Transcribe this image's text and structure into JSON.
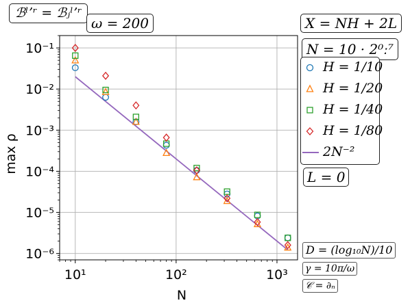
{
  "annotations": {
    "top_left": "ℬˡʼʳ = ℬⱼˡʼʳ",
    "omega": "ω = 200",
    "x_formula": "X = NH + 2L",
    "n_formula": "N = 10 · 2⁰ː⁷",
    "l_value": "L = 0",
    "d_formula": "D = (log₁₀N)/10",
    "gamma_formula": "γ = 10π/ω",
    "c_formula": "𝒞 = ∂ₙ"
  },
  "chart_data": {
    "type": "scatter",
    "xlabel": "N",
    "ylabel": "max ρ",
    "xscale": "log",
    "yscale": "log",
    "xlim": [
      7,
      1600
    ],
    "ylim": [
      7e-07,
      0.2
    ],
    "grid": true,
    "legend_placement": "right, outside plot",
    "x_ticks": [
      {
        "value": 10,
        "label": "10¹"
      },
      {
        "value": 100,
        "label": "10²"
      },
      {
        "value": 1000,
        "label": "10³"
      }
    ],
    "y_ticks": [
      {
        "value": 0.1,
        "label": "10⁻¹"
      },
      {
        "value": 0.01,
        "label": "10⁻²"
      },
      {
        "value": 0.001,
        "label": "10⁻³"
      },
      {
        "value": 0.0001,
        "label": "10⁻⁴"
      },
      {
        "value": 1e-05,
        "label": "10⁻⁵"
      },
      {
        "value": 1e-06,
        "label": "10⁻⁶"
      }
    ],
    "x": [
      10,
      20,
      40,
      80,
      160,
      320,
      640,
      1280
    ],
    "series": [
      {
        "name": "H = 1/10",
        "marker": "circle",
        "color": "#1f77b4",
        "values": [
          0.033,
          0.0063,
          0.0016,
          0.00043,
          0.000105,
          2.8e-05,
          8.2e-06,
          2.4e-06
        ]
      },
      {
        "name": "H = 1/20",
        "marker": "triangle",
        "color": "#ff7f0e",
        "values": [
          0.05,
          0.0085,
          0.0016,
          0.00028,
          7.2e-05,
          1.9e-05,
          5.2e-06,
          1.4e-06
        ]
      },
      {
        "name": "H = 1/40",
        "marker": "square",
        "color": "#2ca02c",
        "values": [
          0.065,
          0.0095,
          0.0021,
          0.00047,
          0.00012,
          3.2e-05,
          8.7e-06,
          2.4e-06
        ]
      },
      {
        "name": "H = 1/80",
        "marker": "diamond",
        "color": "#d62728",
        "values": [
          0.1,
          0.021,
          0.004,
          0.00066,
          0.000105,
          2.2e-05,
          5.8e-06,
          1.6e-06
        ]
      }
    ],
    "reference_line": {
      "name": "2N⁻²",
      "color": "#9467bd",
      "coefficient": 2,
      "exponent": -2,
      "x_range": [
        10,
        1280
      ]
    }
  }
}
